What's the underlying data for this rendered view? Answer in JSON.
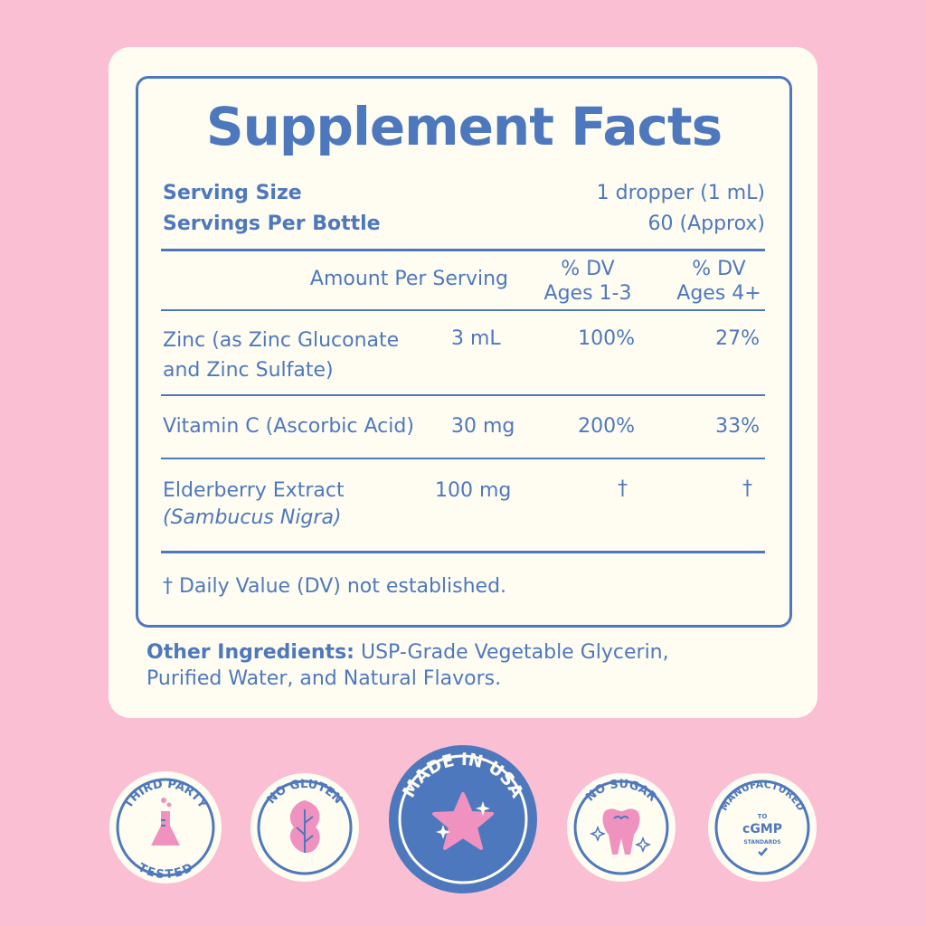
{
  "title": "Supplement Facts",
  "serving": {
    "size_label": "Serving Size",
    "size_value": "1 dropper (1 mL)",
    "per_label": "Servings Per Bottle",
    "per_value": "60 (Approx)"
  },
  "header": {
    "amount": "Amount Per Serving",
    "dv1_line1": "% DV",
    "dv1_line2": "Ages 1-3",
    "dv2_line1": "% DV",
    "dv2_line2": "Ages 4+"
  },
  "rows": [
    {
      "name1": "Zinc (as Zinc Gluconate",
      "name2": "and Zinc Sulfate)",
      "amount": "3 mL",
      "dv1": "100%",
      "dv2": "27%"
    },
    {
      "name1": "Vitamin C (Ascorbic Acid)",
      "amount": "30 mg",
      "dv1": "200%",
      "dv2": "33%"
    },
    {
      "name1": "Elderberry Extract",
      "name2": "(Sambucus Nigra)",
      "amount": "100 mg",
      "dv1": "†",
      "dv2": "†"
    }
  ],
  "footnote": "† Daily Value (DV) not established.",
  "other": {
    "label": "Other Ingredients:",
    "line1": " USP-Grade Vegetable Glycerin,",
    "line2": "Purified Water, and Natural Flavors."
  },
  "badges": [
    {
      "top": "THIRD PARTY",
      "bottom": "TESTED",
      "icon": "flask-icon"
    },
    {
      "top": "NO GLUTEN",
      "icon": "leaf-icon"
    },
    {
      "top": "MADE IN USA",
      "icon": "star-icon"
    },
    {
      "top": "NO SUGAR",
      "icon": "tooth-icon"
    },
    {
      "top": "MANUFACTURED",
      "mid1": "TO",
      "mid2": "cGMP",
      "mid3": "STANDARDS",
      "icon": "check-icon"
    }
  ],
  "colors": {
    "background": "#fbbfd3",
    "card": "#fffdf1",
    "blue": "#4e78bd",
    "pink": "#ef92bf"
  }
}
